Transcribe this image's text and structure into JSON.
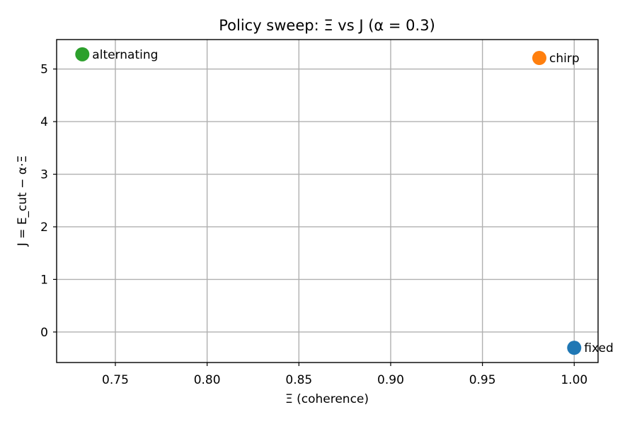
{
  "chart_data": {
    "type": "scatter",
    "title": "Policy sweep: Ξ vs J (α = 0.3)",
    "xlabel": "Ξ (coherence)",
    "ylabel": "J = E_cut − α·Ξ",
    "xlim": [
      0.718,
      1.013
    ],
    "ylim": [
      -0.58,
      5.56
    ],
    "grid": true,
    "xticks": [
      0.75,
      0.8,
      0.85,
      0.9,
      0.95,
      1.0
    ],
    "xtick_labels": [
      "0.75",
      "0.80",
      "0.85",
      "0.90",
      "0.95",
      "1.00"
    ],
    "yticks": [
      0,
      1,
      2,
      3,
      4,
      5
    ],
    "ytick_labels": [
      "0",
      "1",
      "2",
      "3",
      "4",
      "5"
    ],
    "points": [
      {
        "label": "fixed",
        "x": 1.0,
        "y": -0.3,
        "color": "#1f77b4"
      },
      {
        "label": "chirp",
        "x": 0.981,
        "y": 5.21,
        "color": "#ff7f0e"
      },
      {
        "label": "alternating",
        "x": 0.732,
        "y": 5.28,
        "color": "#2ca02c"
      }
    ]
  }
}
